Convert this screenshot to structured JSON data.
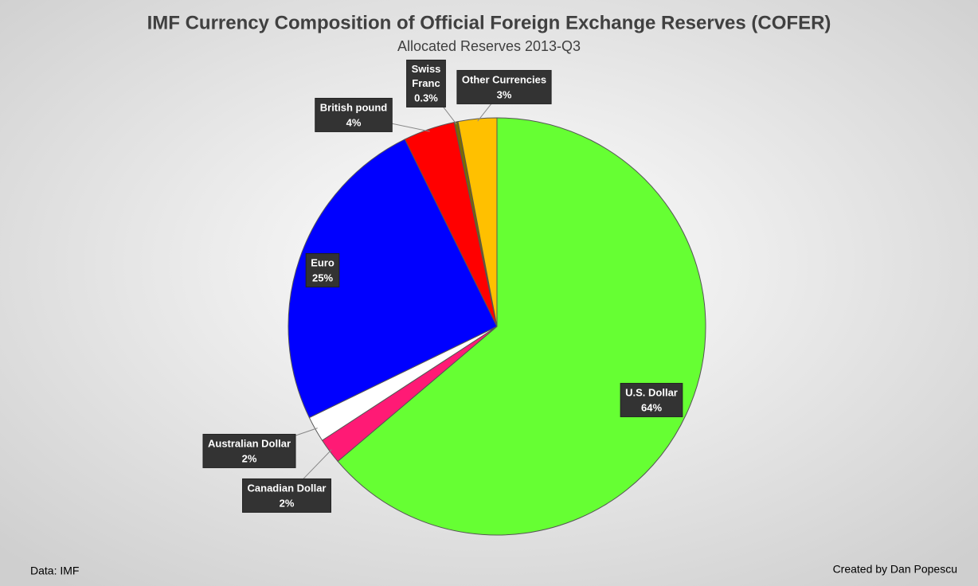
{
  "chart_data": {
    "type": "pie",
    "title": "IMF Currency Composition of Official Foreign Exchange Reserves (COFER)",
    "subtitle": "Allocated Reserves 2013-Q3",
    "categories": [
      "U.S. Dollar",
      "Canadian Dollar",
      "Australian Dollar",
      "Euro",
      "British pound",
      "Swiss Franc",
      "Other Currencies"
    ],
    "values": [
      64,
      2,
      2,
      25,
      4,
      0.3,
      3
    ],
    "value_labels": [
      "64%",
      "2%",
      "2%",
      "25%",
      "4%",
      "0.3%",
      "3%"
    ],
    "colors": [
      "#66ff33",
      "#ff1a75",
      "#ffffff",
      "#0000ff",
      "#ff0000",
      "#7a6a00",
      "#ffc000"
    ],
    "source": "Data: IMF",
    "credit": "Created by Dan Popescu"
  }
}
